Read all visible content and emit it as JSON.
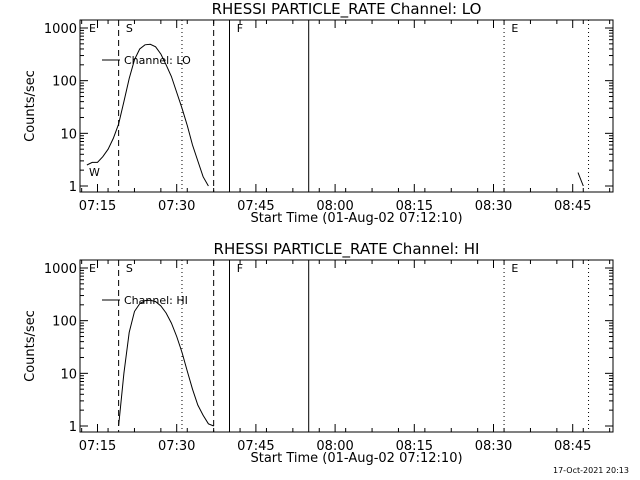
{
  "chart_data": [
    {
      "type": "line",
      "title": "RHESSI PARTICLE_RATE Channel: LO",
      "xlabel": "Start Time (01-Aug-02 07:12:10)",
      "ylabel": "Counts/sec",
      "x_tick_labels": [
        "07:15",
        "07:30",
        "07:45",
        "08:00",
        "08:15",
        "08:30",
        "08:45"
      ],
      "y_tick_labels": [
        "1",
        "10",
        "100",
        "1000"
      ],
      "ylim": [
        1,
        1000
      ],
      "yscale": "log",
      "legend": "upper-left",
      "series": [
        {
          "name": "Channel: LO",
          "x": [
            "07:13",
            "07:14",
            "07:15",
            "07:16",
            "07:17",
            "07:18",
            "07:19",
            "07:20",
            "07:21",
            "07:22",
            "07:23",
            "07:24",
            "07:25",
            "07:26",
            "07:27",
            "07:28",
            "07:29",
            "07:30",
            "07:31",
            "07:32",
            "07:33",
            "07:34",
            "07:35",
            "07:36"
          ],
          "values": [
            2.5,
            2.8,
            2.8,
            3.6,
            5,
            8,
            15,
            40,
            110,
            250,
            400,
            480,
            490,
            440,
            320,
            200,
            120,
            60,
            30,
            14,
            6,
            3,
            1.5,
            1
          ],
          "extra_x": [
            "08:46",
            "08:47"
          ],
          "extra_values": [
            1.8,
            1
          ]
        }
      ],
      "markers": {
        "dashed": [
          "07:19",
          "07:37"
        ],
        "dotted": [
          "07:31",
          "08:32",
          "08:48"
        ],
        "solid": [
          "07:40",
          "07:55"
        ],
        "labels": [
          {
            "x": "07:13",
            "text": "E"
          },
          {
            "x": "07:20",
            "text": "S"
          },
          {
            "x": "07:41",
            "text": "F"
          },
          {
            "x": "08:33",
            "text": "E"
          },
          {
            "x": "07:13",
            "text": "W",
            "position": "bottom"
          }
        ]
      }
    },
    {
      "type": "line",
      "title": "RHESSI PARTICLE_RATE Channel: HI",
      "xlabel": "Start Time (01-Aug-02 07:12:10)",
      "ylabel": "Counts/sec",
      "x_tick_labels": [
        "07:15",
        "07:30",
        "07:45",
        "08:00",
        "08:15",
        "08:30",
        "08:45"
      ],
      "y_tick_labels": [
        "1",
        "10",
        "100",
        "1000"
      ],
      "ylim": [
        1,
        1000
      ],
      "yscale": "log",
      "legend": "upper-left",
      "series": [
        {
          "name": "Channel: HI",
          "x": [
            "07:19",
            "07:20",
            "07:21",
            "07:22",
            "07:23",
            "07:24",
            "07:25",
            "07:26",
            "07:27",
            "07:28",
            "07:29",
            "07:30",
            "07:31",
            "07:32",
            "07:33",
            "07:34",
            "07:35",
            "07:36",
            "07:37"
          ],
          "values": [
            1,
            10,
            60,
            150,
            210,
            240,
            245,
            230,
            190,
            140,
            90,
            50,
            25,
            11,
            5,
            2.5,
            1.6,
            1.1,
            1
          ]
        }
      ],
      "markers": {
        "dashed": [
          "07:19",
          "07:37"
        ],
        "dotted": [
          "07:31",
          "08:32",
          "08:48"
        ],
        "solid": [
          "07:40",
          "07:55"
        ],
        "labels": [
          {
            "x": "07:13",
            "text": "E"
          },
          {
            "x": "07:20",
            "text": "S"
          },
          {
            "x": "07:41",
            "text": "F"
          },
          {
            "x": "08:33",
            "text": "E"
          }
        ]
      }
    }
  ],
  "footer": {
    "timestamp": "17-Oct-2021 20:13"
  }
}
